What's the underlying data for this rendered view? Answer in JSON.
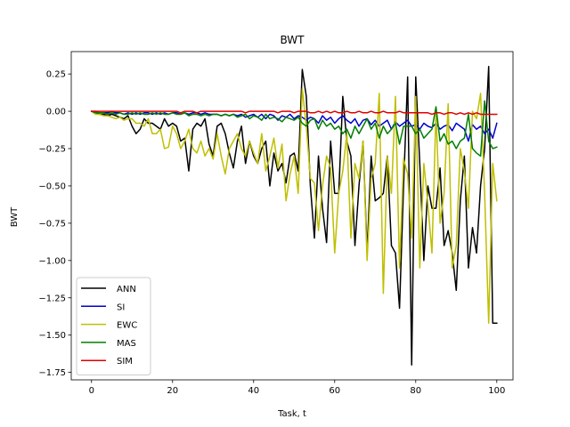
{
  "chart_data": {
    "type": "line",
    "title": "BWT",
    "xlabel": "Task, t",
    "ylabel": "BWT",
    "xlim": [
      -5,
      104
    ],
    "ylim": [
      -1.8,
      0.4
    ],
    "xticks": [
      0,
      20,
      40,
      60,
      80,
      100
    ],
    "yticks": [
      0.25,
      0.0,
      -0.25,
      -0.5,
      -0.75,
      -1.0,
      -1.25,
      -1.5,
      -1.75
    ],
    "ytick_labels": [
      "0.25",
      "0.00",
      "−0.25",
      "−0.50",
      "−0.75",
      "−1.00",
      "−1.25",
      "−1.50",
      "−1.75"
    ],
    "grid": false,
    "legend_position": "lower-left",
    "series": [
      {
        "name": "ANN",
        "color": "#000000",
        "values": [
          0.0,
          -0.01,
          -0.02,
          -0.02,
          -0.03,
          -0.02,
          -0.03,
          -0.04,
          -0.05,
          -0.03,
          -0.1,
          -0.15,
          -0.12,
          -0.05,
          -0.08,
          -0.08,
          -0.1,
          -0.12,
          -0.05,
          -0.1,
          -0.08,
          -0.1,
          -0.2,
          -0.18,
          -0.4,
          -0.12,
          -0.08,
          -0.1,
          -0.05,
          -0.22,
          -0.3,
          -0.1,
          -0.08,
          -0.15,
          -0.28,
          -0.38,
          -0.2,
          -0.1,
          -0.35,
          -0.2,
          -0.3,
          -0.35,
          -0.25,
          -0.2,
          -0.5,
          -0.28,
          -0.4,
          -0.35,
          -0.48,
          -0.3,
          -0.28,
          -0.4,
          0.28,
          0.1,
          -0.5,
          -0.85,
          -0.3,
          -0.65,
          -0.88,
          -0.2,
          -0.55,
          -0.55,
          0.1,
          -0.2,
          -0.3,
          -0.9,
          -0.5,
          -0.2,
          -0.95,
          -0.3,
          -0.6,
          -0.58,
          -0.55,
          -0.3,
          -0.9,
          -0.95,
          -1.32,
          -0.5,
          0.23,
          -1.7,
          0.23,
          -0.35,
          -1.0,
          -0.5,
          -0.65,
          -0.65,
          -0.38,
          -0.9,
          -0.8,
          -0.95,
          -1.2,
          -0.6,
          -0.3,
          -1.05,
          -0.78,
          -0.95,
          -0.5,
          -0.25,
          0.3,
          -1.42,
          -1.42
        ]
      },
      {
        "name": "SI",
        "color": "#0000cc",
        "values": [
          0.0,
          0.0,
          -0.01,
          -0.01,
          -0.01,
          0.0,
          -0.01,
          -0.01,
          -0.02,
          -0.01,
          -0.02,
          -0.01,
          -0.02,
          -0.01,
          -0.01,
          -0.02,
          -0.01,
          -0.02,
          -0.01,
          -0.02,
          -0.01,
          -0.01,
          -0.02,
          -0.01,
          -0.02,
          -0.01,
          -0.01,
          -0.02,
          -0.01,
          -0.02,
          -0.02,
          -0.02,
          -0.03,
          -0.02,
          -0.03,
          -0.02,
          -0.03,
          -0.02,
          -0.04,
          -0.03,
          -0.02,
          -0.04,
          -0.02,
          -0.05,
          -0.02,
          -0.03,
          -0.06,
          -0.03,
          -0.04,
          -0.02,
          -0.05,
          -0.03,
          -0.04,
          -0.06,
          -0.04,
          -0.05,
          -0.08,
          -0.03,
          -0.06,
          -0.04,
          -0.08,
          -0.05,
          -0.03,
          -0.06,
          -0.08,
          -0.05,
          -0.1,
          -0.06,
          -0.05,
          -0.09,
          -0.06,
          -0.1,
          -0.08,
          -0.06,
          -0.12,
          -0.07,
          -0.1,
          -0.08,
          -0.06,
          -0.1,
          -0.09,
          -0.12,
          -0.08,
          -0.1,
          -0.11,
          -0.08,
          -0.12,
          -0.1,
          -0.09,
          -0.13,
          -0.08,
          -0.1,
          -0.12,
          -0.2,
          -0.09,
          -0.12,
          -0.1,
          -0.15,
          -0.12,
          -0.18,
          -0.08
        ]
      },
      {
        "name": "EWC",
        "color": "#bfbf00",
        "values": [
          0.0,
          -0.02,
          -0.02,
          -0.03,
          -0.03,
          -0.04,
          -0.05,
          -0.04,
          -0.06,
          -0.05,
          -0.05,
          -0.08,
          -0.08,
          -0.1,
          -0.05,
          -0.15,
          -0.15,
          -0.12,
          -0.25,
          -0.24,
          -0.1,
          -0.15,
          -0.25,
          -0.2,
          -0.12,
          -0.25,
          -0.28,
          -0.2,
          -0.3,
          -0.25,
          -0.32,
          -0.15,
          -0.3,
          -0.42,
          -0.25,
          -0.2,
          -0.15,
          -0.25,
          -0.3,
          -0.2,
          -0.28,
          -0.35,
          -0.15,
          -0.4,
          -0.3,
          -0.18,
          -0.38,
          -0.22,
          -0.6,
          -0.42,
          -0.3,
          -0.55,
          0.15,
          -0.1,
          -0.45,
          -0.48,
          -0.8,
          -0.5,
          -0.3,
          -0.38,
          -0.95,
          -0.55,
          -0.4,
          -0.15,
          -0.85,
          -0.35,
          -0.45,
          -0.2,
          -1.0,
          -0.45,
          -0.35,
          0.12,
          -1.22,
          -0.3,
          -0.55,
          0.1,
          -1.05,
          -0.32,
          -0.42,
          -0.85,
          0.1,
          -1.05,
          -0.35,
          -0.62,
          -0.95,
          0.0,
          -0.75,
          -0.55,
          0.05,
          -1.05,
          -0.9,
          -0.25,
          -0.4,
          -0.65,
          0.0,
          -0.05,
          0.12,
          -0.55,
          -1.42,
          -0.35,
          -0.6
        ]
      },
      {
        "name": "MAS",
        "color": "#007f00",
        "values": [
          0.0,
          -0.01,
          -0.01,
          -0.01,
          -0.02,
          -0.01,
          -0.02,
          -0.01,
          -0.02,
          -0.02,
          -0.01,
          -0.02,
          -0.01,
          -0.02,
          -0.02,
          -0.01,
          -0.02,
          -0.01,
          -0.02,
          -0.02,
          -0.01,
          -0.02,
          -0.02,
          -0.01,
          -0.03,
          -0.02,
          -0.02,
          -0.03,
          -0.02,
          -0.03,
          -0.02,
          -0.02,
          -0.03,
          -0.02,
          -0.03,
          -0.02,
          -0.04,
          -0.03,
          -0.02,
          -0.05,
          -0.03,
          -0.04,
          -0.06,
          -0.02,
          -0.05,
          -0.04,
          -0.05,
          -0.07,
          -0.04,
          -0.05,
          -0.06,
          -0.04,
          -0.08,
          -0.1,
          -0.06,
          -0.05,
          -0.12,
          -0.06,
          -0.1,
          -0.08,
          -0.12,
          -0.1,
          -0.15,
          -0.12,
          -0.18,
          -0.1,
          -0.15,
          -0.1,
          -0.05,
          -0.12,
          -0.08,
          -0.18,
          -0.1,
          -0.15,
          -0.12,
          -0.08,
          -0.22,
          -0.1,
          -0.1,
          -0.1,
          -0.15,
          -0.12,
          -0.18,
          -0.15,
          -0.12,
          0.03,
          -0.2,
          -0.15,
          -0.22,
          -0.2,
          -0.25,
          -0.2,
          -0.18,
          -0.02,
          -0.25,
          -0.28,
          -0.3,
          0.07,
          -0.2,
          -0.25,
          -0.24
        ]
      },
      {
        "name": "SIM",
        "color": "#e00000",
        "values": [
          0.0,
          0.0,
          0.0,
          0.0,
          0.0,
          0.0,
          0.0,
          0.0,
          0.0,
          0.0,
          0.0,
          0.0,
          0.0,
          0.0,
          0.0,
          0.0,
          0.0,
          0.0,
          0.0,
          0.0,
          0.0,
          0.0,
          -0.01,
          0.0,
          0.0,
          0.0,
          -0.01,
          0.0,
          0.0,
          0.0,
          0.0,
          0.0,
          0.0,
          0.0,
          0.0,
          0.0,
          0.0,
          0.0,
          -0.01,
          0.0,
          0.0,
          0.0,
          0.0,
          0.0,
          0.0,
          0.0,
          -0.01,
          0.0,
          0.0,
          0.0,
          -0.01,
          0.0,
          0.0,
          0.0,
          -0.01,
          -0.01,
          0.0,
          -0.01,
          0.0,
          -0.01,
          0.0,
          -0.01,
          -0.01,
          0.0,
          -0.01,
          -0.01,
          0.0,
          -0.01,
          -0.01,
          0.0,
          -0.01,
          -0.01,
          0.0,
          -0.01,
          -0.01,
          -0.01,
          0.0,
          -0.01,
          -0.01,
          -0.01,
          -0.01,
          -0.01,
          -0.01,
          -0.01,
          -0.02,
          -0.01,
          -0.01,
          -0.02,
          -0.01,
          -0.01,
          -0.02,
          -0.01,
          -0.02,
          -0.01,
          -0.02,
          -0.01,
          -0.02,
          -0.02,
          -0.02,
          -0.02,
          -0.02
        ]
      }
    ]
  }
}
